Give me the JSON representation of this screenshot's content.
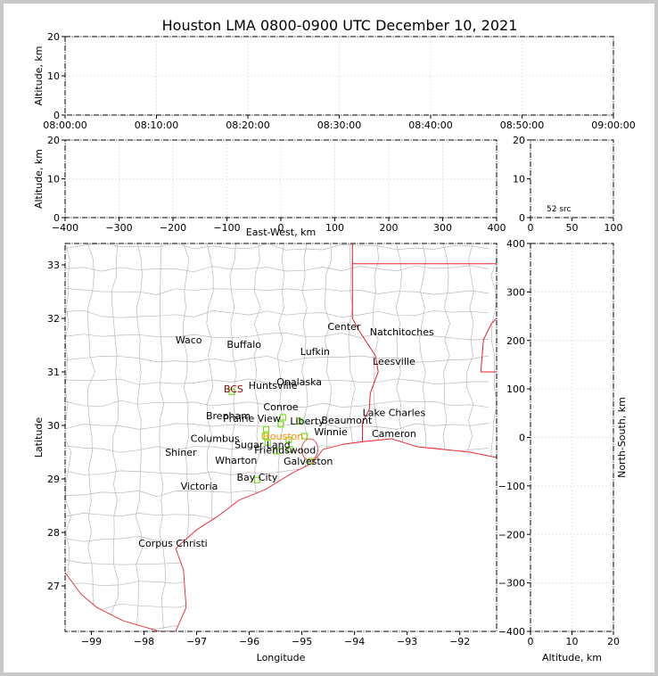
{
  "figure": {
    "title": "Houston LMA 0800-0900 UTC December 10, 2021"
  },
  "chart_data": [
    {
      "id": "time-height",
      "type": "scatter",
      "xlabel": "",
      "ylabel": "Altitude, km",
      "xlim": [
        "08:00:00",
        "09:00:00"
      ],
      "xticks": [
        "08:00:00",
        "08:10:00",
        "08:20:00",
        "08:30:00",
        "08:40:00",
        "08:50:00",
        "09:00:00"
      ],
      "ylim": [
        0,
        20
      ],
      "yticks": [
        0,
        10,
        20
      ],
      "grid": true,
      "series": []
    },
    {
      "id": "ew-height",
      "type": "scatter",
      "xlabel": "East-West, km",
      "ylabel": "Altitude, km",
      "xlim": [
        -400,
        400
      ],
      "xticks": [
        -400,
        -300,
        -200,
        -100,
        0,
        100,
        200,
        300,
        400
      ],
      "ylim": [
        0,
        20
      ],
      "yticks": [
        0,
        10,
        20
      ],
      "grid": true,
      "series": []
    },
    {
      "id": "source-histogram",
      "type": "bar",
      "xlabel": "",
      "ylabel": "",
      "xlim": [
        0,
        100
      ],
      "xticks": [
        0,
        50,
        100
      ],
      "ylim": [
        0,
        20
      ],
      "yticks": [
        0,
        10,
        20
      ],
      "annotation": "52 src",
      "grid": false,
      "series": []
    },
    {
      "id": "plan-view",
      "type": "scatter",
      "xlabel": "Longitude",
      "ylabel": "Latitude",
      "xlim": [
        -99.5,
        -91.3
      ],
      "xticks": [
        -99,
        -98,
        -97,
        -96,
        -95,
        -94,
        -93,
        -92
      ],
      "ylim": [
        26.15,
        33.4
      ],
      "yticks": [
        27,
        28,
        29,
        30,
        31,
        32,
        33
      ],
      "right_axis_label": "North-South, km",
      "right_ylim": [
        -400,
        400
      ],
      "right_yticks": [
        -400,
        -300,
        -200,
        -100,
        0,
        100,
        200,
        300,
        400
      ],
      "cities": [
        {
          "name": "Waco",
          "lon": -97.15,
          "lat": 31.6
        },
        {
          "name": "Buffalo",
          "lon": -96.1,
          "lat": 31.52
        },
        {
          "name": "Center",
          "lon": -94.2,
          "lat": 31.85
        },
        {
          "name": "Natchitoches",
          "lon": -93.1,
          "lat": 31.75
        },
        {
          "name": "Lufkin",
          "lon": -94.75,
          "lat": 31.38
        },
        {
          "name": "Leesville",
          "lon": -93.25,
          "lat": 31.2
        },
        {
          "name": "BCS",
          "lon": -96.3,
          "lat": 30.68,
          "color": "#8b0000"
        },
        {
          "name": "Huntsville",
          "lon": -95.55,
          "lat": 30.75
        },
        {
          "name": "Onalaska",
          "lon": -95.05,
          "lat": 30.82
        },
        {
          "name": "Conroe",
          "lon": -95.4,
          "lat": 30.35
        },
        {
          "name": "Brenham",
          "lon": -96.4,
          "lat": 30.18
        },
        {
          "name": "Prairie View",
          "lon": -95.95,
          "lat": 30.13
        },
        {
          "name": "Liberty",
          "lon": -94.9,
          "lat": 30.08
        },
        {
          "name": "Beaumont",
          "lon": -94.15,
          "lat": 30.1
        },
        {
          "name": "Lake Charles",
          "lon": -93.25,
          "lat": 30.24
        },
        {
          "name": "Winnie",
          "lon": -94.45,
          "lat": 29.88
        },
        {
          "name": "Cameron",
          "lon": -93.25,
          "lat": 29.85
        },
        {
          "name": "Columbus",
          "lon": -96.65,
          "lat": 29.76
        },
        {
          "name": "Houston",
          "lon": -95.36,
          "lat": 29.8,
          "color": "#ff8c00"
        },
        {
          "name": "Sugar Land",
          "lon": -95.75,
          "lat": 29.64
        },
        {
          "name": "Friendswood",
          "lon": -95.32,
          "lat": 29.54
        },
        {
          "name": "Shiner",
          "lon": -97.3,
          "lat": 29.5
        },
        {
          "name": "Wharton",
          "lon": -96.25,
          "lat": 29.35
        },
        {
          "name": "Galveston",
          "lon": -94.88,
          "lat": 29.33
        },
        {
          "name": "Bay City",
          "lon": -95.85,
          "lat": 29.03
        },
        {
          "name": "Victoria",
          "lon": -96.95,
          "lat": 28.87
        },
        {
          "name": "Corpus Christi",
          "lon": -97.45,
          "lat": 27.8
        }
      ],
      "stations": [
        {
          "lon": -96.33,
          "lat": 30.63
        },
        {
          "lon": -95.36,
          "lat": 30.15
        },
        {
          "lon": -95.4,
          "lat": 30.02
        },
        {
          "lon": -95.05,
          "lat": 30.08
        },
        {
          "lon": -95.68,
          "lat": 29.93
        },
        {
          "lon": -95.7,
          "lat": 29.8
        },
        {
          "lon": -95.65,
          "lat": 29.68
        },
        {
          "lon": -95.48,
          "lat": 29.52
        },
        {
          "lon": -95.23,
          "lat": 29.55
        },
        {
          "lon": -95.25,
          "lat": 29.73
        },
        {
          "lon": -94.95,
          "lat": 29.8
        },
        {
          "lon": -94.83,
          "lat": 29.33
        },
        {
          "lon": -95.85,
          "lat": 28.98
        }
      ],
      "series": []
    },
    {
      "id": "ns-height",
      "type": "scatter",
      "xlabel": "Altitude, km",
      "ylabel": "North-South, km",
      "xlim": [
        0,
        20
      ],
      "xticks": [
        0,
        10,
        20
      ],
      "ylim": [
        -400,
        400
      ],
      "yticks": [
        -400,
        -300,
        -200,
        -100,
        0,
        100,
        200,
        300,
        400
      ],
      "grid": true,
      "series": []
    }
  ],
  "colors": {
    "state_line": "#e8212a",
    "county_line": "#b9b9b9",
    "station": "#7ddc1f",
    "houston": "#ff8c00",
    "bcs": "#8b0000",
    "grid": "#e6e6e6"
  }
}
